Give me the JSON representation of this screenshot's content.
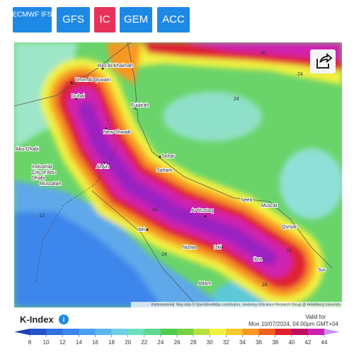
{
  "models": [
    "ECMWF IFS",
    "GFS",
    "IC",
    "GEM",
    "ACC"
  ],
  "map": {
    "labels": [
      "Ras Al Khaimah",
      "Umm Al Quwain",
      "Dubai",
      "Fujairah",
      "New Shwaib",
      "Abu Dhabi",
      "Industrial",
      "City of Abu",
      "Dhabi",
      "Mussafah",
      "Al Ain",
      "Sohar",
      "Saham",
      "Ar Rustaq",
      "Seeb",
      "Muscat",
      "Quryat",
      "Ibri",
      "Nizwa",
      "Izki",
      "Ibra",
      "Sur",
      "Adam"
    ],
    "contours": [
      30,
      24,
      24,
      12,
      24,
      24,
      41,
      24
    ],
    "attribution": "Kartenmaterial: Map data © OpenStreetMap contributors, rendering GIScience Research Group @ Heidelberg University"
  },
  "legend": {
    "title": "K-Index",
    "valid_label": "Valid for",
    "valid_time": "Mon 10/07/2024, 04:00pm GMT+04",
    "ticks": [
      8,
      10,
      12,
      14,
      16,
      18,
      20,
      22,
      24,
      26,
      28,
      30,
      32,
      34,
      36,
      38,
      40,
      42,
      44
    ],
    "colors": [
      "#1a3fb0",
      "#2255c8",
      "#2f6fe0",
      "#3d86ec",
      "#4aa0f0",
      "#5cb8f0",
      "#6fd0e8",
      "#6fe0c0",
      "#60d890",
      "#50cc50",
      "#7ad040",
      "#b8e040",
      "#f0f040",
      "#f8c830",
      "#f89820",
      "#f06020",
      "#e02030",
      "#c01060",
      "#d020b0",
      "#c890f0"
    ]
  }
}
